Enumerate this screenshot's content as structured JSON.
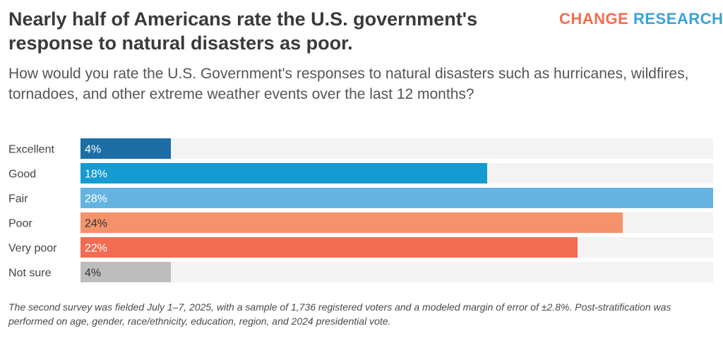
{
  "title": "Nearly half of Americans rate the U.S. government's response to natural disasters as poor.",
  "logo": {
    "word1": "CHANGE",
    "word2": "RESEARCH",
    "mark": "™"
  },
  "question": "How would you rate the U.S. Government's responses to natural disasters such as hurricanes, wildfires, tornadoes, and other extreme weather events over the last 12 months?",
  "note": "The second survey was fielded July 1–7, 2025, with a sample of 1,736 registered voters and a modeled margin of error of ±2.8%. Post-stratification was performed on age, gender, race/ethnicity, education, region, and 2024 presidential vote.",
  "chart_data": {
    "type": "bar",
    "orientation": "horizontal",
    "categories": [
      "Excellent",
      "Good",
      "Fair",
      "Poor",
      "Very poor",
      "Not sure"
    ],
    "values": [
      4,
      18,
      28,
      24,
      22,
      4
    ],
    "value_labels": [
      "4%",
      "18%",
      "28%",
      "24%",
      "22%",
      "4%"
    ],
    "xlim": [
      0,
      28
    ],
    "colors": [
      "#1c6ea4",
      "#139bd2",
      "#65b4e0",
      "#f4926b",
      "#f26b52",
      "#bdbdbd"
    ],
    "track_color": "#f3f3f3",
    "label_colors": [
      "#ffffff",
      "#ffffff",
      "#ffffff",
      "#333333",
      "#ffffff",
      "#333333"
    ]
  }
}
